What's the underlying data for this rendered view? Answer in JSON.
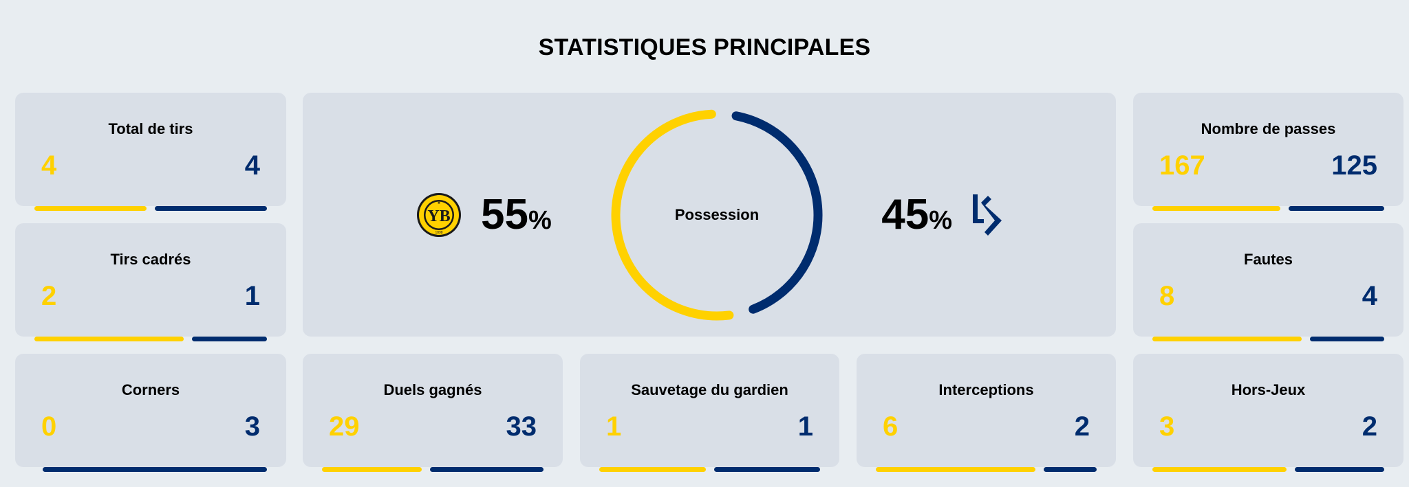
{
  "page_title": "STATISTIQUES PRINCIPALES",
  "colors": {
    "home": "#ffd100",
    "away": "#002c6e",
    "card_bg": "#d9dfe7",
    "page_bg": "#e8edf1"
  },
  "teams": {
    "home": {
      "name": "BSC Young Boys",
      "logo_icon": "young-boys-crest-icon"
    },
    "away": {
      "name": "FC Lausanne-Sport",
      "logo_icon": "lausanne-sport-ls-icon"
    }
  },
  "possession": {
    "label": "Possession",
    "home_value": "55",
    "away_value": "45",
    "unit": "%"
  },
  "stats": {
    "total_shots": {
      "label": "Total de tirs",
      "home": "4",
      "away": "4"
    },
    "shots_on_target": {
      "label": "Tirs cadrés",
      "home": "2",
      "away": "1"
    },
    "passes": {
      "label": "Nombre de passes",
      "home": "167",
      "away": "125"
    },
    "fouls": {
      "label": "Fautes",
      "home": "8",
      "away": "4"
    },
    "corners": {
      "label": "Corners",
      "home": "0",
      "away": "3"
    },
    "duels_won": {
      "label": "Duels gagnés",
      "home": "29",
      "away": "33"
    },
    "saves": {
      "label": "Sauvetage du gardien",
      "home": "1",
      "away": "1"
    },
    "interceptions": {
      "label": "Interceptions",
      "home": "6",
      "away": "2"
    },
    "offsides": {
      "label": "Hors-Jeux",
      "home": "3",
      "away": "2"
    }
  }
}
